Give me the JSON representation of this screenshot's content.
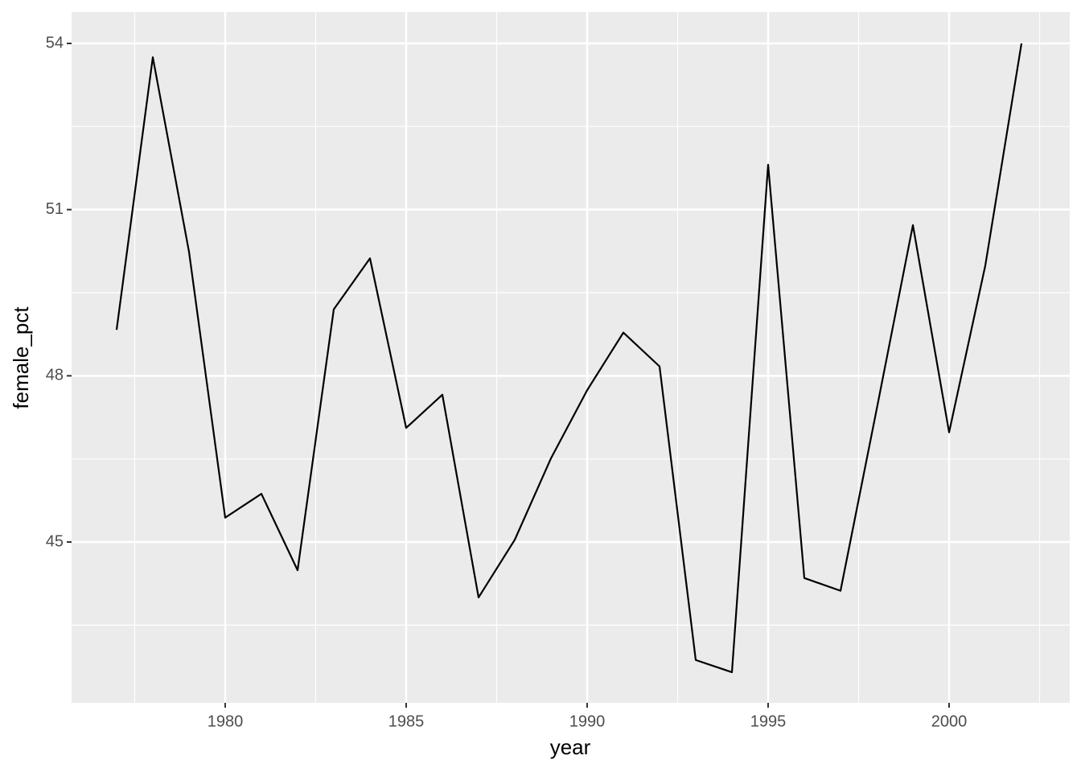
{
  "chart_data": {
    "type": "line",
    "x_label": "year",
    "y_label": "female_pct",
    "x": [
      1977,
      1978,
      1979,
      1980,
      1981,
      1982,
      1983,
      1984,
      1985,
      1986,
      1987,
      1988,
      1989,
      1990,
      1991,
      1992,
      1993,
      1994,
      1995,
      1996,
      1997,
      1998,
      1999,
      2000,
      2001,
      2002
    ],
    "values": [
      48.83,
      53.75,
      50.24,
      45.44,
      45.87,
      44.49,
      49.2,
      50.12,
      47.06,
      47.66,
      44.0,
      45.04,
      46.51,
      47.74,
      48.78,
      48.17,
      42.87,
      42.65,
      51.81,
      44.35,
      44.12,
      47.4,
      50.72,
      46.98,
      49.99,
      54.0
    ],
    "color": "#000000",
    "xlim": [
      1975.756,
      2003.333
    ],
    "ylim": [
      42.097,
      54.566
    ],
    "xticks": [
      1980,
      1985,
      1990,
      1995,
      2000
    ],
    "yticks": [
      45,
      48,
      51,
      54
    ],
    "xminor": [
      1977.5,
      1982.5,
      1987.5,
      1992.5,
      1997.5,
      2002.5
    ],
    "yminor": [
      43.5,
      46.5,
      49.5,
      52.5
    ],
    "grid": true,
    "panel_color": "#ebebeb"
  }
}
